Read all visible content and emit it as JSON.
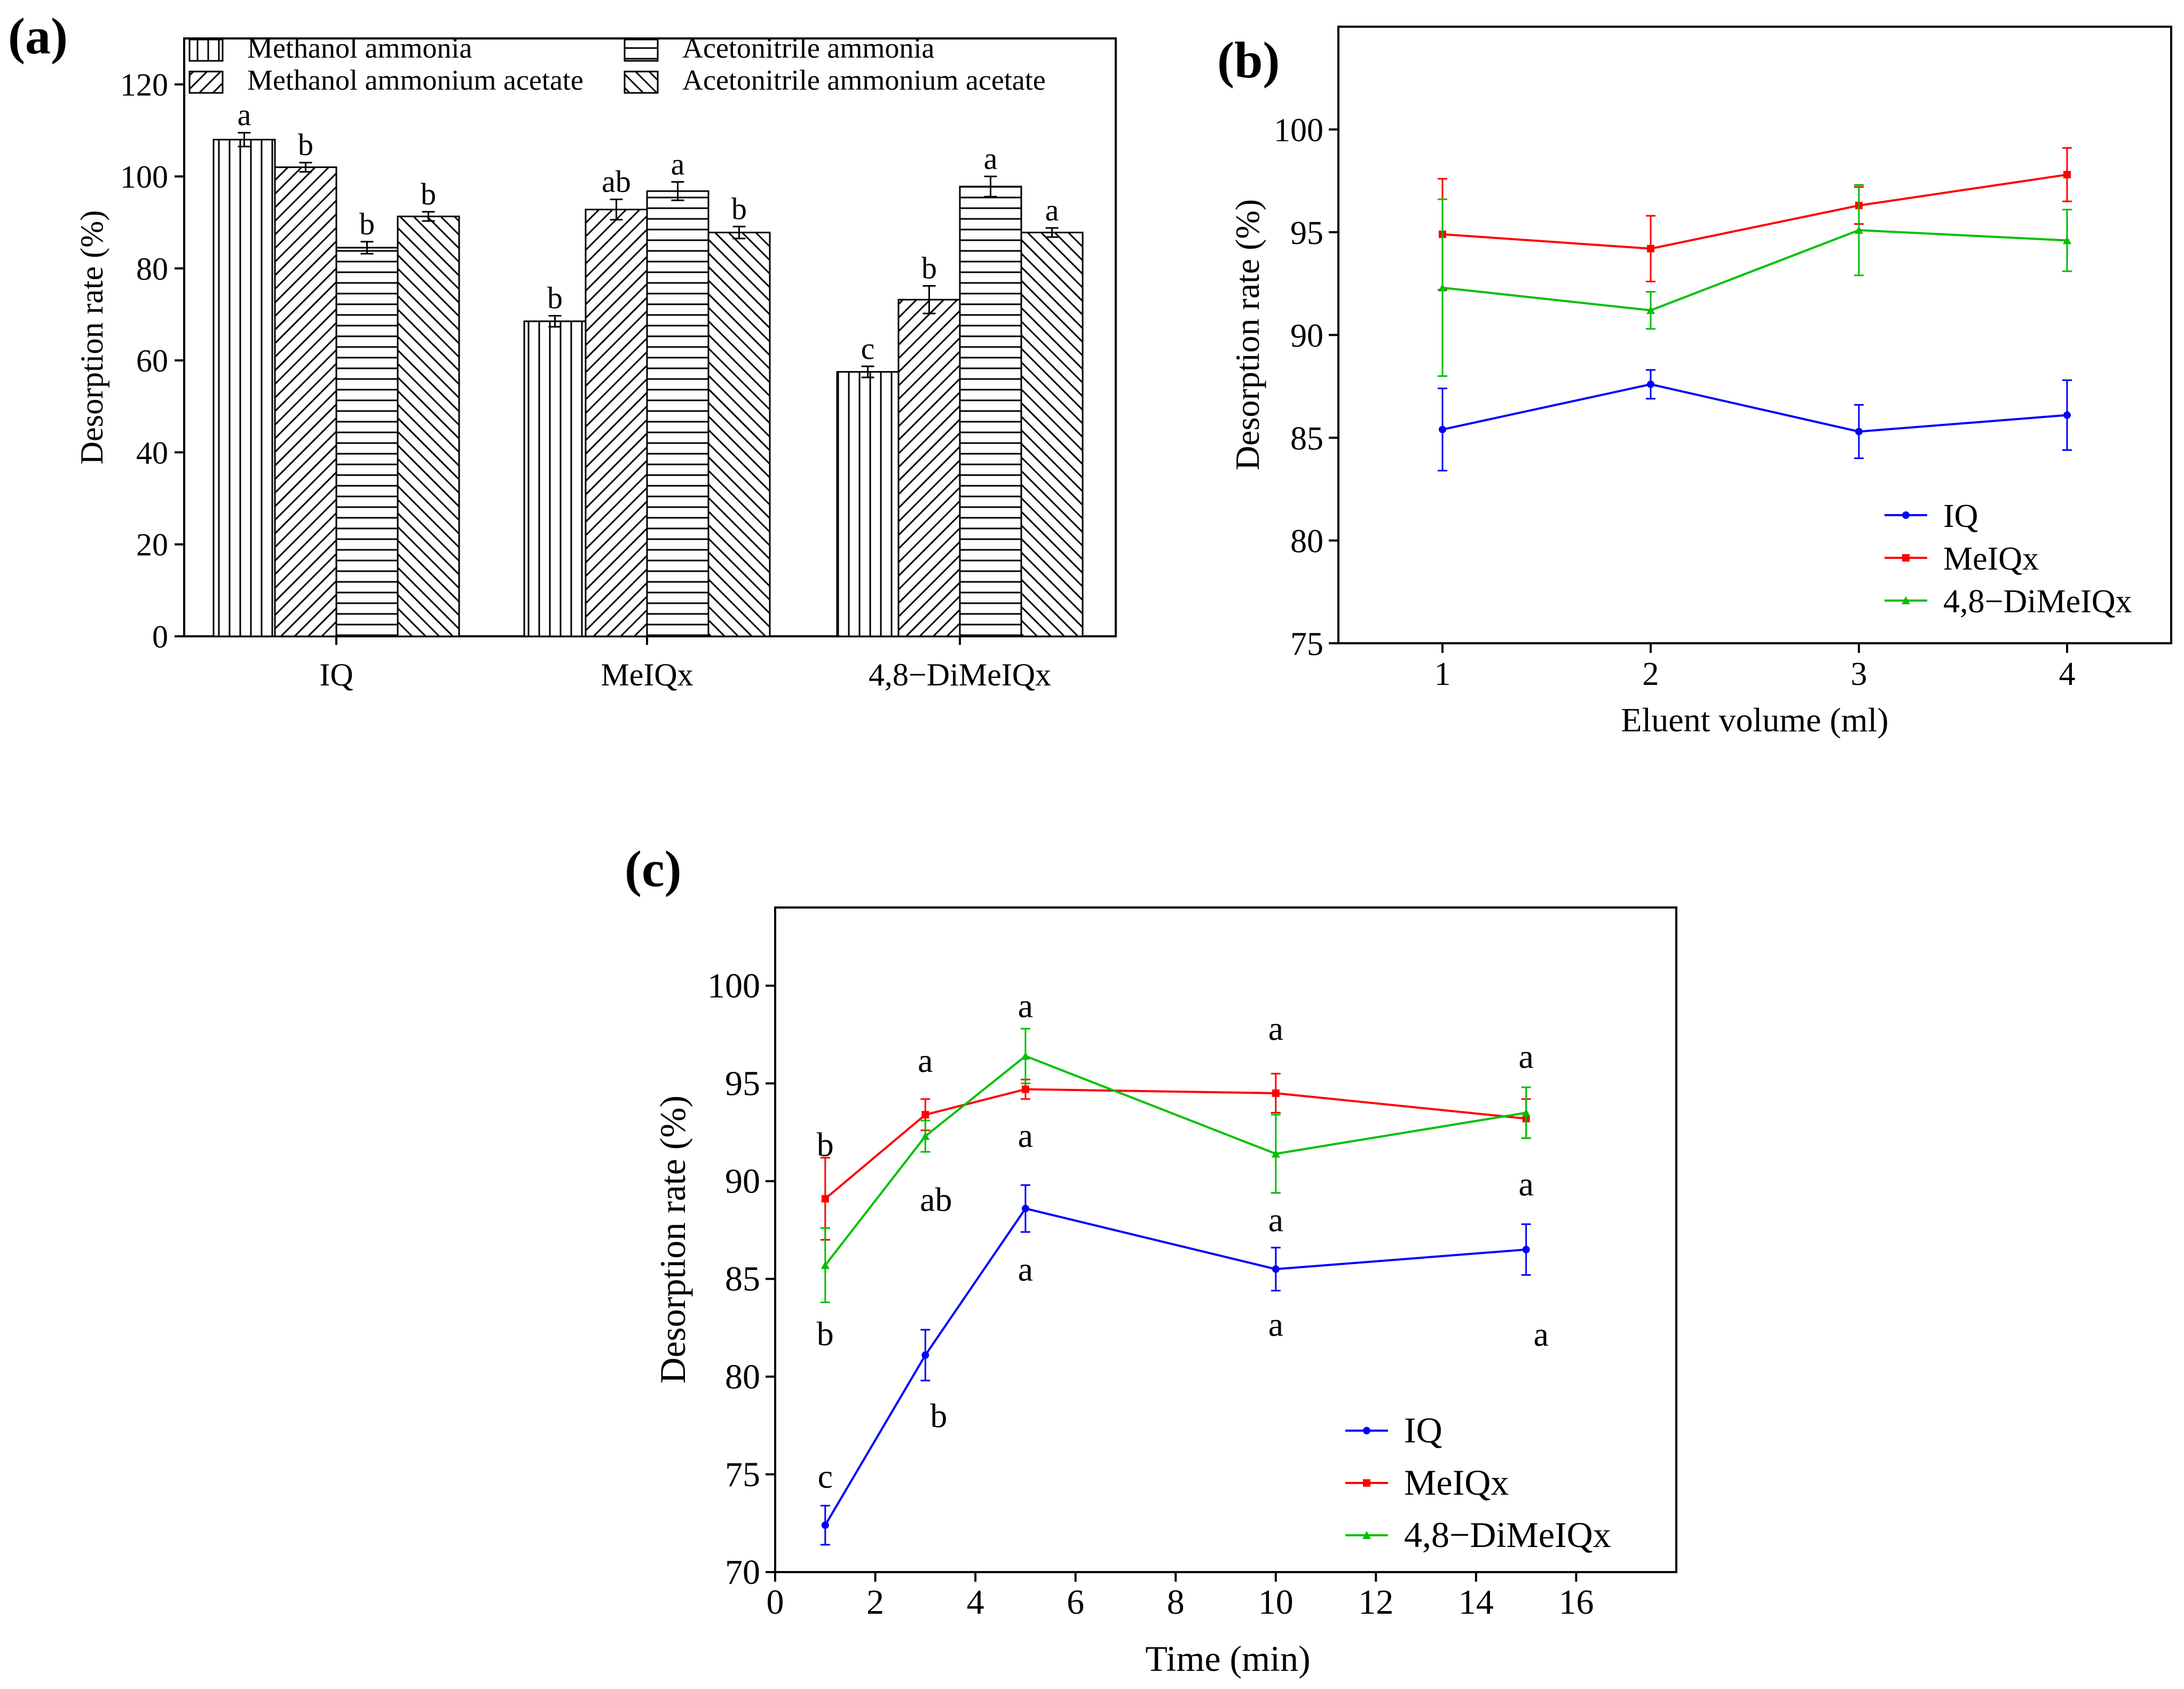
{
  "colors": {
    "IQ": "#0000ff",
    "MeIQx": "#ff0000",
    "4,8-DiMeIQx": "#00c000",
    "axis": "#000000"
  },
  "chart_data": [
    {
      "panel_label": "(a)",
      "type": "bar",
      "title": "",
      "xlabel": "",
      "ylabel": "Desorption rate (%)",
      "ylim": [
        0,
        130
      ],
      "yticks": [
        0,
        20,
        40,
        60,
        80,
        100,
        120
      ],
      "categories": [
        "IQ",
        "MeIQx",
        "4,8−DiMeIQx"
      ],
      "legend_position": "top",
      "series": [
        {
          "name": "Methanol ammonia",
          "pattern": "vertical",
          "values": [
            108,
            68.5,
            57.5
          ],
          "errors": [
            1.5,
            1.2,
            1.2
          ],
          "letters": [
            "a",
            "b",
            "c"
          ]
        },
        {
          "name": "Methanol ammonium acetate",
          "pattern": "backslash",
          "values": [
            102,
            92.8,
            73.2
          ],
          "errors": [
            1.0,
            2.2,
            3.0
          ],
          "letters": [
            "b",
            "ab",
            "b"
          ]
        },
        {
          "name": "Acetonitrile ammonia",
          "pattern": "horizontal",
          "values": [
            84.5,
            96.8,
            97.8
          ],
          "errors": [
            1.3,
            2.0,
            2.2
          ],
          "letters": [
            "b",
            "a",
            "a"
          ]
        },
        {
          "name": "Acetonitrile ammonium acetate",
          "pattern": "slash",
          "values": [
            91.3,
            87.8,
            87.8
          ],
          "errors": [
            1.0,
            1.3,
            1.0
          ],
          "letters": [
            "b",
            "b",
            "a"
          ]
        }
      ]
    },
    {
      "panel_label": "(b)",
      "type": "line",
      "title": "",
      "xlabel": "Eluent volume (ml)",
      "ylabel": "Desorption rate (%)",
      "xlim": [
        0.5,
        4.5
      ],
      "xticks": [
        1,
        2,
        3,
        4
      ],
      "ylim": [
        75,
        105
      ],
      "yticks": [
        75,
        80,
        85,
        90,
        95,
        100
      ],
      "legend_position": "bottom-right",
      "x": [
        1,
        2,
        3,
        4
      ],
      "series": [
        {
          "name": "IQ",
          "marker": "circle",
          "values": [
            85.4,
            87.6,
            85.3,
            86.1
          ],
          "errors": [
            2.0,
            0.7,
            1.3,
            1.7
          ]
        },
        {
          "name": "MeIQx",
          "marker": "square",
          "values": [
            94.9,
            94.2,
            96.3,
            97.8
          ],
          "errors": [
            2.7,
            1.6,
            0.9,
            1.3
          ]
        },
        {
          "name": "4,8−DiMeIQx",
          "marker": "triangle",
          "values": [
            92.3,
            91.2,
            95.1,
            94.6
          ],
          "errors": [
            4.3,
            0.9,
            2.2,
            1.5
          ]
        }
      ]
    },
    {
      "panel_label": "(c)",
      "type": "line",
      "title": "",
      "xlabel": "Time (min)",
      "ylabel": "Desorption rate (%)",
      "xlim": [
        0,
        18
      ],
      "xticks": [
        0,
        2,
        4,
        6,
        8,
        10,
        12,
        14,
        16
      ],
      "ylim": [
        70,
        104
      ],
      "yticks": [
        70,
        75,
        80,
        85,
        90,
        95,
        100
      ],
      "legend_position": "bottom-right",
      "x": [
        1,
        3,
        5,
        10,
        15
      ],
      "series": [
        {
          "name": "IQ",
          "marker": "circle",
          "values": [
            72.4,
            81.1,
            88.6,
            85.5,
            86.5
          ],
          "errors": [
            1.0,
            1.3,
            1.2,
            1.1,
            1.3
          ],
          "letters": [
            "c",
            "b",
            "a",
            "a",
            "a"
          ]
        },
        {
          "name": "MeIQx",
          "marker": "square",
          "values": [
            89.1,
            93.4,
            94.7,
            94.5,
            93.2
          ],
          "errors": [
            2.1,
            0.8,
            0.5,
            1.0,
            1.0
          ],
          "letters": [
            "b",
            "a",
            "a",
            "a",
            "a"
          ]
        },
        {
          "name": "4,8−DiMeIQx",
          "marker": "triangle",
          "values": [
            85.7,
            92.3,
            96.4,
            91.4,
            93.5
          ],
          "errors": [
            1.9,
            0.8,
            1.4,
            2.0,
            1.3
          ],
          "letters": [
            "b",
            "ab",
            "a",
            "a",
            "a"
          ]
        }
      ]
    }
  ]
}
